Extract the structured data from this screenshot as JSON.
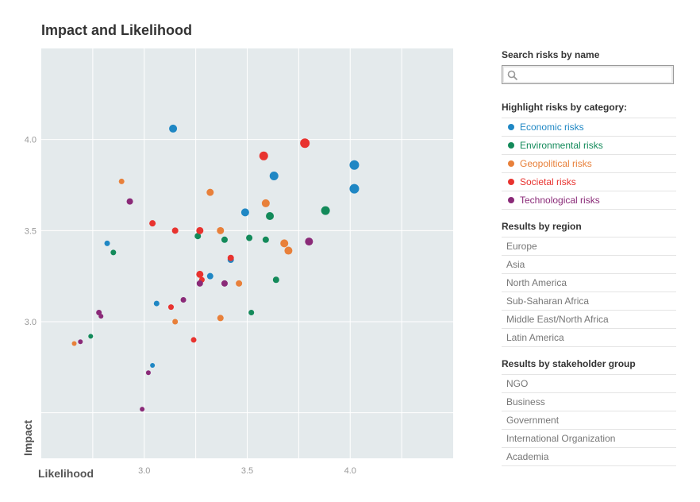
{
  "page": {
    "title": "Impact and Likelihood"
  },
  "search": {
    "heading": "Search risks by name",
    "placeholder": ""
  },
  "categories": {
    "heading": "Highlight risks by category:",
    "items": [
      {
        "label": "Economic risks",
        "color": "#1f87c4"
      },
      {
        "label": "Environmental risks",
        "color": "#138a5a"
      },
      {
        "label": "Geopolitical risks",
        "color": "#e8803a"
      },
      {
        "label": "Societal risks",
        "color": "#e8332f"
      },
      {
        "label": "Technological risks",
        "color": "#8a2a78"
      }
    ]
  },
  "regions": {
    "heading": "Results by region",
    "items": [
      "Europe",
      "Asia",
      "North America",
      "Sub-Saharan Africa",
      "Middle East/North Africa",
      "Latin America"
    ]
  },
  "stakeholders": {
    "heading": "Results by stakeholder group",
    "items": [
      "NGO",
      "Business",
      "Government",
      "International Organization",
      "Academia"
    ]
  },
  "chart_data": {
    "type": "scatter",
    "title": "Impact and Likelihood",
    "xlabel": "Likelihood",
    "ylabel": "Impact",
    "xlim": [
      2.5,
      4.5
    ],
    "ylim": [
      2.25,
      4.5
    ],
    "xticks": [
      "3.0",
      "3.5",
      "4.0"
    ],
    "yticks": [
      "3.0",
      "3.5",
      "4.0"
    ],
    "grid": true,
    "background": "#e4eaec",
    "series": [
      {
        "color": "#1f87c4",
        "points": [
          {
            "x": 3.14,
            "y": 4.06,
            "r": 5
          },
          {
            "x": 4.02,
            "y": 3.86,
            "r": 6
          },
          {
            "x": 4.02,
            "y": 3.73,
            "r": 6
          },
          {
            "x": 3.63,
            "y": 3.8,
            "r": 5.5
          },
          {
            "x": 3.49,
            "y": 3.6,
            "r": 5
          },
          {
            "x": 3.42,
            "y": 3.34,
            "r": 4
          },
          {
            "x": 3.32,
            "y": 3.25,
            "r": 4
          },
          {
            "x": 2.82,
            "y": 3.43,
            "r": 3.5
          },
          {
            "x": 3.06,
            "y": 3.1,
            "r": 3.5
          },
          {
            "x": 3.04,
            "y": 2.76,
            "r": 3
          }
        ]
      },
      {
        "color": "#138a5a",
        "points": [
          {
            "x": 3.88,
            "y": 3.61,
            "r": 5.5
          },
          {
            "x": 3.61,
            "y": 3.58,
            "r": 5
          },
          {
            "x": 3.26,
            "y": 3.47,
            "r": 4
          },
          {
            "x": 3.39,
            "y": 3.45,
            "r": 4
          },
          {
            "x": 3.51,
            "y": 3.46,
            "r": 4
          },
          {
            "x": 3.59,
            "y": 3.45,
            "r": 4
          },
          {
            "x": 3.64,
            "y": 3.23,
            "r": 4
          },
          {
            "x": 3.52,
            "y": 3.05,
            "r": 3.5
          },
          {
            "x": 2.85,
            "y": 3.38,
            "r": 3.5
          },
          {
            "x": 2.74,
            "y": 2.92,
            "r": 3
          }
        ]
      },
      {
        "color": "#e8803a",
        "points": [
          {
            "x": 2.89,
            "y": 3.77,
            "r": 3.5
          },
          {
            "x": 3.32,
            "y": 3.71,
            "r": 4.5
          },
          {
            "x": 3.59,
            "y": 3.65,
            "r": 5
          },
          {
            "x": 3.37,
            "y": 3.5,
            "r": 4.5
          },
          {
            "x": 3.68,
            "y": 3.43,
            "r": 5
          },
          {
            "x": 3.7,
            "y": 3.39,
            "r": 5
          },
          {
            "x": 3.46,
            "y": 3.21,
            "r": 4
          },
          {
            "x": 3.15,
            "y": 3.0,
            "r": 3.5
          },
          {
            "x": 3.37,
            "y": 3.02,
            "r": 4
          },
          {
            "x": 2.66,
            "y": 2.88,
            "r": 3
          }
        ]
      },
      {
        "color": "#e8332f",
        "points": [
          {
            "x": 3.58,
            "y": 3.91,
            "r": 5.5
          },
          {
            "x": 3.78,
            "y": 3.98,
            "r": 6
          },
          {
            "x": 3.04,
            "y": 3.54,
            "r": 4
          },
          {
            "x": 3.15,
            "y": 3.5,
            "r": 4
          },
          {
            "x": 3.27,
            "y": 3.5,
            "r": 4.5
          },
          {
            "x": 3.42,
            "y": 3.35,
            "r": 4
          },
          {
            "x": 3.27,
            "y": 3.26,
            "r": 4.5
          },
          {
            "x": 3.28,
            "y": 3.23,
            "r": 3.5
          },
          {
            "x": 3.13,
            "y": 3.08,
            "r": 3.5
          },
          {
            "x": 3.24,
            "y": 2.9,
            "r": 3.5
          }
        ]
      },
      {
        "color": "#8a2a78",
        "points": [
          {
            "x": 2.93,
            "y": 3.66,
            "r": 4
          },
          {
            "x": 3.8,
            "y": 3.44,
            "r": 5
          },
          {
            "x": 3.39,
            "y": 3.21,
            "r": 4
          },
          {
            "x": 3.27,
            "y": 3.21,
            "r": 4
          },
          {
            "x": 3.19,
            "y": 3.12,
            "r": 3.5
          },
          {
            "x": 2.78,
            "y": 3.05,
            "r": 3.5
          },
          {
            "x": 2.79,
            "y": 3.03,
            "r": 3
          },
          {
            "x": 2.69,
            "y": 2.89,
            "r": 3
          },
          {
            "x": 3.02,
            "y": 2.72,
            "r": 3
          },
          {
            "x": 2.99,
            "y": 2.52,
            "r": 3
          }
        ]
      }
    ]
  }
}
